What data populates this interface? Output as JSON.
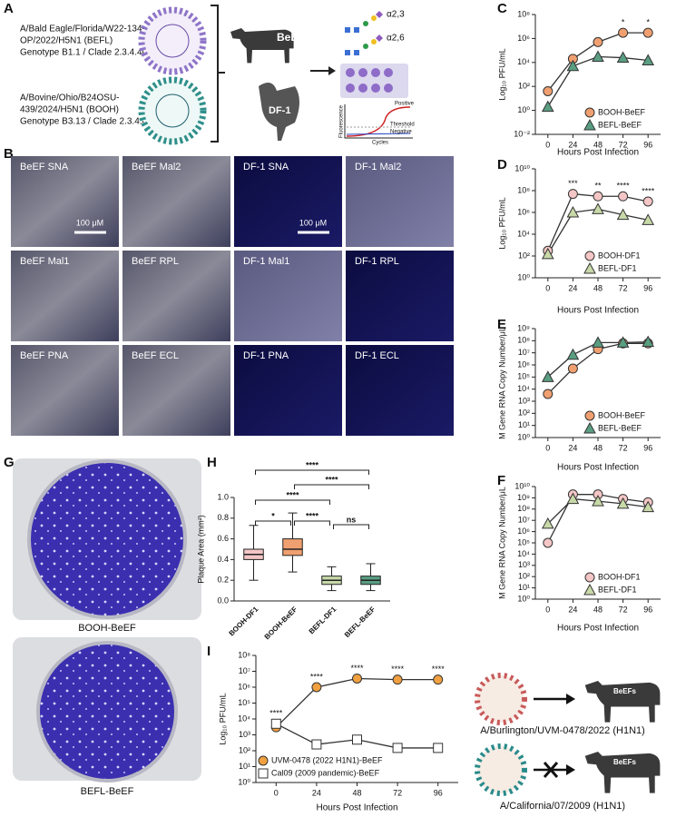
{
  "panel_labels": [
    "A",
    "B",
    "C",
    "D",
    "E",
    "F",
    "G",
    "H",
    "I"
  ],
  "panel_a": {
    "strains": [
      [
        "A/Bald Eagle/Florida/W22-134-",
        "OP/2022/H5N1 (BEFL)",
        "Genotype B1.1 / Clade 2.3.4.4b"
      ],
      [
        "A/Bovine/Ohio/B24OSU-",
        "439/2024/H5N1 (BOOH)",
        "Genotype B3.13 / Clade 2.3.4.4b"
      ]
    ],
    "cells": [
      "BeEF",
      "DF-1"
    ],
    "glycans": [
      "α2,3",
      "α2,6"
    ],
    "qpcr": [
      "Positive",
      "Threshold",
      "Negative",
      "Cycles",
      "Fluorescence"
    ]
  },
  "panel_b": {
    "images": [
      "BeEF SNA",
      "BeEF Mal2",
      "DF-1 SNA",
      "DF-1 Mal2",
      "BeEF Mal1",
      "BeEF RPL",
      "DF-1 Mal1",
      "DF-1 RPL",
      "BeEF PNA",
      "BeEF ECL",
      "DF-1 PNA",
      "DF-1 ECL"
    ],
    "scale_bar": "100 μM"
  },
  "panel_g": {
    "plates": [
      "BOOH-BeEF",
      "BEFL-BeEF"
    ]
  },
  "panel_i_cartoon": {
    "strains": [
      "A/Burlington/UVM-0478/2022 (H1N1)",
      "A/California/07/2009 (H1N1)"
    ],
    "cell_label": "BeEFs"
  },
  "chart_data": [
    {
      "type": "line",
      "y_label": "Log₁₀ PFU/mL",
      "x_label": "Hours Post Infection",
      "x": [
        0,
        24,
        48,
        72,
        96
      ],
      "xlim": [
        -12,
        108
      ],
      "xticks": [
        0,
        24,
        48,
        72,
        96
      ],
      "log_y": true,
      "ylim": [
        0.01,
        100000000
      ],
      "yticks": [
        {
          "value": 0.01,
          "label": "10⁻²"
        },
        {
          "value": 1,
          "label": "10⁰"
        },
        {
          "value": 100,
          "label": "10²"
        },
        {
          "value": 10000,
          "label": "10⁴"
        },
        {
          "value": 1000000,
          "label": "10⁶"
        },
        {
          "value": 100000000,
          "label": "10⁸"
        }
      ],
      "legend": "lower right",
      "series": [
        {
          "name": "BOOH-BeEF",
          "color": "#f0a070",
          "marker": "circle",
          "values": [
            40,
            20000,
            500000,
            3000000,
            3000000
          ]
        },
        {
          "name": "BEFL-BeEF",
          "color": "#5a9e82",
          "marker": "triangle",
          "values": [
            2,
            5000,
            30000,
            25000,
            15000
          ]
        }
      ],
      "annotations": [
        {
          "x": 72,
          "text": "*"
        },
        {
          "x": 96,
          "text": "*"
        }
      ]
    },
    {
      "type": "line",
      "y_label": "Log₁₀ PFU/mL",
      "x_label": "Hours Post Infection",
      "x": [
        0,
        24,
        48,
        72,
        96
      ],
      "xlim": [
        -12,
        108
      ],
      "xticks": [
        0,
        24,
        48,
        72,
        96
      ],
      "log_y": true,
      "ylim": [
        1,
        10000000000
      ],
      "yticks": [
        {
          "value": 1,
          "label": "10⁰"
        },
        {
          "value": 100,
          "label": "10²"
        },
        {
          "value": 10000,
          "label": "10⁴"
        },
        {
          "value": 1000000,
          "label": "10⁶"
        },
        {
          "value": 100000000,
          "label": "10⁸"
        },
        {
          "value": 10000000000,
          "label": "10¹⁰"
        }
      ],
      "legend": "lower right",
      "series": [
        {
          "name": "BOOH-DF1",
          "color": "#f4c6c6",
          "marker": "circle",
          "values": [
            300,
            50000000,
            30000000,
            30000000,
            10000000
          ]
        },
        {
          "name": "BEFL-DF1",
          "color": "#c8d9a8",
          "marker": "triangle",
          "values": [
            150,
            1000000,
            2000000,
            600000,
            200000
          ]
        }
      ],
      "annotations": [
        {
          "x": 24,
          "text": "***"
        },
        {
          "x": 48,
          "text": "**"
        },
        {
          "x": 72,
          "text": "****"
        },
        {
          "x": 96,
          "text": "****"
        }
      ]
    },
    {
      "type": "line",
      "y_label": "M Gene RNA Copy Number/μL",
      "x_label": "Hours Post Infection",
      "x": [
        0,
        24,
        48,
        72,
        96
      ],
      "xlim": [
        -12,
        108
      ],
      "xticks": [
        0,
        24,
        48,
        72,
        96
      ],
      "log_y": true,
      "ylim": [
        1,
        1000000000
      ],
      "yticks": [
        {
          "value": 1,
          "label": "10⁰"
        },
        {
          "value": 10,
          "label": "10¹"
        },
        {
          "value": 100,
          "label": "10²"
        },
        {
          "value": 1000,
          "label": "10³"
        },
        {
          "value": 10000,
          "label": "10⁴"
        },
        {
          "value": 100000,
          "label": "10⁵"
        },
        {
          "value": 1000000,
          "label": "10⁶"
        },
        {
          "value": 10000000,
          "label": "10⁷"
        },
        {
          "value": 100000000,
          "label": "10⁸"
        },
        {
          "value": 1000000000,
          "label": "10⁹"
        }
      ],
      "legend": "lower right",
      "series": [
        {
          "name": "BOOH-BeEF",
          "color": "#f0a070",
          "marker": "circle",
          "values": [
            4000,
            500000,
            20000000,
            60000000,
            60000000
          ]
        },
        {
          "name": "BEFL-BeEF",
          "color": "#5a9e82",
          "marker": "triangle",
          "values": [
            100000,
            7000000,
            70000000,
            70000000,
            80000000
          ]
        }
      ]
    },
    {
      "type": "line",
      "y_label": "M Gene RNA Copy Number/μL",
      "x_label": "Hours Post Infection",
      "x": [
        0,
        24,
        48,
        72,
        96
      ],
      "xlim": [
        -12,
        108
      ],
      "xticks": [
        0,
        24,
        48,
        72,
        96
      ],
      "log_y": true,
      "ylim": [
        1,
        10000000000
      ],
      "yticks": [
        {
          "value": 1,
          "label": "10⁰"
        },
        {
          "value": 10,
          "label": "10¹"
        },
        {
          "value": 100,
          "label": "10²"
        },
        {
          "value": 1000,
          "label": "10³"
        },
        {
          "value": 10000,
          "label": "10⁴"
        },
        {
          "value": 100000,
          "label": "10⁵"
        },
        {
          "value": 1000000,
          "label": "10⁶"
        },
        {
          "value": 10000000,
          "label": "10⁷"
        },
        {
          "value": 100000000,
          "label": "10⁸"
        },
        {
          "value": 1000000000,
          "label": "10⁹"
        },
        {
          "value": 10000000000,
          "label": "10¹⁰"
        }
      ],
      "legend": "lower right",
      "series": [
        {
          "name": "BOOH-DF1",
          "color": "#f4c6c6",
          "marker": "circle",
          "values": [
            100000,
            2000000000,
            2000000000,
            800000000,
            400000000
          ]
        },
        {
          "name": "BEFL-DF1",
          "color": "#c8d9a8",
          "marker": "triangle",
          "values": [
            5000000,
            800000000,
            500000000,
            300000000,
            150000000
          ]
        }
      ]
    },
    {
      "type": "box",
      "y_label": "Plaque Area (mm²)",
      "categories": [
        "BOOH-DF1",
        "BOOH-BeEF",
        "BEFL-DF1",
        "BEFL-BeEF"
      ],
      "colors": [
        "#f4c6c6",
        "#f0a070",
        "#c8d9a8",
        "#5a9e82"
      ],
      "ylim": [
        0,
        1
      ],
      "yticks": [
        {
          "value": 0,
          "label": "0.0"
        },
        {
          "value": 0.2,
          "label": "0.2"
        },
        {
          "value": 0.4,
          "label": "0.4"
        },
        {
          "value": 0.6,
          "label": "0.6"
        },
        {
          "value": 0.8,
          "label": "0.8"
        },
        {
          "value": 1,
          "label": "1.0"
        }
      ],
      "boxes": [
        {
          "min": 0.2,
          "q1": 0.4,
          "median": 0.45,
          "q3": 0.5,
          "max": 0.73
        },
        {
          "min": 0.28,
          "q1": 0.44,
          "median": 0.5,
          "q3": 0.6,
          "max": 0.85
        },
        {
          "min": 0.1,
          "q1": 0.16,
          "median": 0.2,
          "q3": 0.24,
          "max": 0.33
        },
        {
          "min": 0.1,
          "q1": 0.16,
          "median": 0.2,
          "q3": 0.24,
          "max": 0.36
        }
      ],
      "brackets": [
        {
          "from": "BOOH-DF1",
          "to": "BEFL-BeEF",
          "label": "****"
        },
        {
          "from": "BOOH-BeEF",
          "to": "BEFL-BeEF",
          "label": "****"
        },
        {
          "from": "BOOH-DF1",
          "to": "BEFL-DF1",
          "label": "****"
        },
        {
          "from": "BOOH-DF1",
          "to": "BOOH-BeEF",
          "label": "*"
        },
        {
          "from": "BOOH-BeEF",
          "to": "BEFL-DF1",
          "label": "****"
        },
        {
          "from": "BEFL-DF1",
          "to": "BEFL-BeEF",
          "label": "ns"
        }
      ]
    },
    {
      "type": "line",
      "y_label": "Log₁₀ PFU/mL",
      "x_label": "Hours Post Infection",
      "x": [
        0,
        24,
        48,
        72,
        96
      ],
      "xlim": [
        -12,
        108
      ],
      "xticks": [
        0,
        24,
        48,
        72,
        96
      ],
      "log_y": true,
      "ylim": [
        1,
        100000000
      ],
      "yticks": [
        {
          "value": 1,
          "label": "10⁰"
        },
        {
          "value": 10,
          "label": "10¹"
        },
        {
          "value": 100,
          "label": "10²"
        },
        {
          "value": 1000,
          "label": "10³"
        },
        {
          "value": 10000,
          "label": "10⁴"
        },
        {
          "value": 100000,
          "label": "10⁵"
        },
        {
          "value": 1000000,
          "label": "10⁶"
        },
        {
          "value": 10000000,
          "label": "10⁷"
        },
        {
          "value": 100000000,
          "label": "10⁸"
        }
      ],
      "legend": "lower left",
      "series": [
        {
          "name": "UVM-0478 (2022 H1N1)-BeEF",
          "color": "#f0a040",
          "marker": "circle",
          "values": [
            3000,
            1000000,
            3500000,
            3000000,
            3000000
          ]
        },
        {
          "name": "Cal09 (2009 pandemic)-BeEF",
          "color": "#ffffff",
          "marker": "square",
          "values": [
            5000,
            250,
            500,
            150,
            150
          ]
        }
      ],
      "annotations": [
        {
          "x": 0,
          "text": "****"
        },
        {
          "x": 24,
          "text": "****"
        },
        {
          "x": 48,
          "text": "****"
        },
        {
          "x": 72,
          "text": "****"
        },
        {
          "x": 96,
          "text": "****"
        }
      ]
    }
  ]
}
